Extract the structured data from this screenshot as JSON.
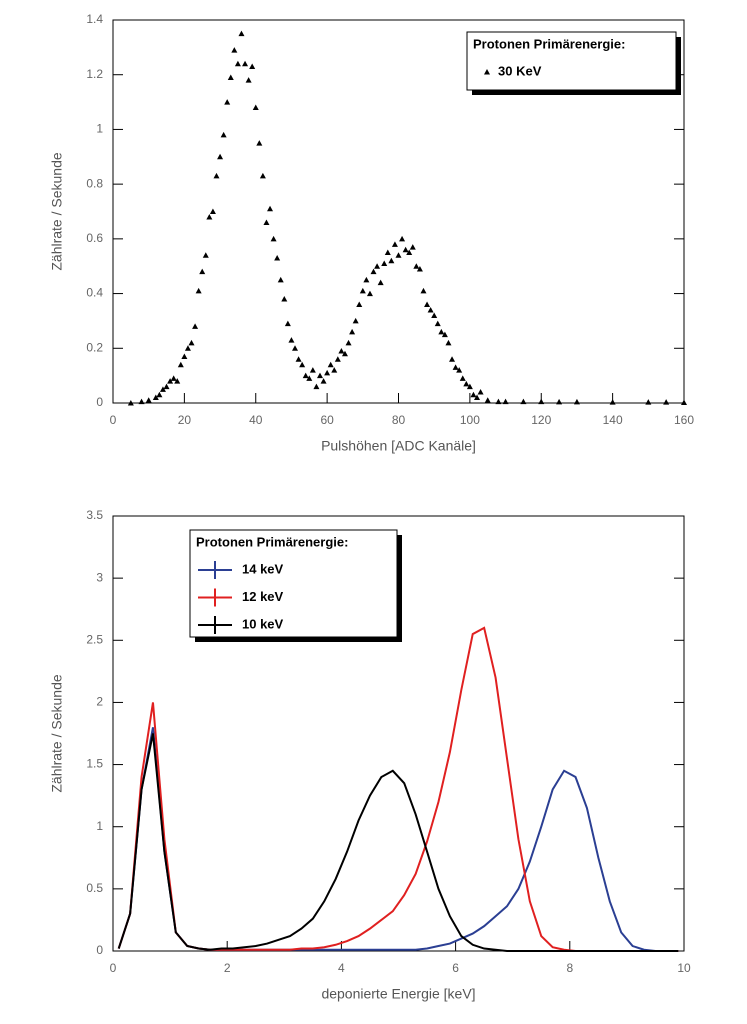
{
  "chart_data": [
    {
      "type": "scatter",
      "x_label": "Pulshöhen [ADC Kanäle]",
      "y_label": "Zählrate / Sekunde",
      "legend_title": "Protonen Primärenergie:",
      "xlim": [
        0,
        160
      ],
      "xticks": [
        0,
        20,
        40,
        60,
        80,
        100,
        120,
        140,
        160
      ],
      "ylim": [
        0,
        1.4
      ],
      "yticks": [
        0,
        0.2,
        0.4,
        0.6,
        0.8,
        1,
        1.2,
        1.4
      ],
      "series": [
        {
          "name": "30 KeV",
          "color": "#000000",
          "x": [
            5,
            8,
            10,
            12,
            13,
            14,
            15,
            16,
            17,
            18,
            19,
            20,
            21,
            22,
            23,
            24,
            25,
            26,
            27,
            28,
            29,
            30,
            31,
            32,
            33,
            34,
            35,
            36,
            37,
            38,
            39,
            40,
            41,
            42,
            43,
            44,
            45,
            46,
            47,
            48,
            49,
            50,
            51,
            52,
            53,
            54,
            55,
            56,
            57,
            58,
            59,
            60,
            61,
            62,
            63,
            64,
            65,
            66,
            67,
            68,
            69,
            70,
            71,
            72,
            73,
            74,
            75,
            76,
            77,
            78,
            79,
            80,
            81,
            82,
            83,
            84,
            85,
            86,
            87,
            88,
            89,
            90,
            91,
            92,
            93,
            94,
            95,
            96,
            97,
            98,
            99,
            100,
            101,
            102,
            103,
            105,
            108,
            110,
            115,
            120,
            125,
            130,
            140,
            150,
            155,
            160
          ],
          "values": [
            0,
            0.005,
            0.01,
            0.02,
            0.03,
            0.05,
            0.06,
            0.08,
            0.09,
            0.08,
            0.14,
            0.17,
            0.2,
            0.22,
            0.28,
            0.41,
            0.48,
            0.54,
            0.68,
            0.7,
            0.83,
            0.9,
            0.98,
            1.1,
            1.19,
            1.29,
            1.24,
            1.35,
            1.24,
            1.18,
            1.23,
            1.08,
            0.95,
            0.83,
            0.66,
            0.71,
            0.6,
            0.53,
            0.45,
            0.38,
            0.29,
            0.23,
            0.2,
            0.16,
            0.14,
            0.1,
            0.09,
            0.12,
            0.06,
            0.1,
            0.08,
            0.11,
            0.14,
            0.12,
            0.16,
            0.19,
            0.18,
            0.22,
            0.26,
            0.3,
            0.36,
            0.41,
            0.45,
            0.4,
            0.48,
            0.5,
            0.44,
            0.51,
            0.55,
            0.52,
            0.58,
            0.54,
            0.6,
            0.56,
            0.55,
            0.57,
            0.5,
            0.49,
            0.41,
            0.36,
            0.34,
            0.32,
            0.29,
            0.26,
            0.25,
            0.22,
            0.16,
            0.13,
            0.12,
            0.09,
            0.07,
            0.06,
            0.03,
            0.02,
            0.04,
            0.01,
            0.005,
            0.005,
            0.005,
            0.005,
            0.004,
            0.004,
            0.003,
            0.003,
            0.003,
            0.002
          ]
        }
      ]
    },
    {
      "type": "line",
      "x_label": "deponierte Energie [keV]",
      "y_label": "Zählrate / Sekunde",
      "legend_title": "Protonen Primärenergie:",
      "xlim": [
        0,
        10
      ],
      "xticks": [
        0,
        2,
        4,
        6,
        8,
        10
      ],
      "ylim": [
        0,
        3.5
      ],
      "yticks": [
        0,
        0.5,
        1,
        1.5,
        2,
        2.5,
        3,
        3.5
      ],
      "x": [
        0.1,
        0.3,
        0.5,
        0.7,
        0.9,
        1.1,
        1.3,
        1.5,
        1.7,
        1.9,
        2.1,
        2.3,
        2.5,
        2.7,
        2.9,
        3.1,
        3.3,
        3.5,
        3.7,
        3.9,
        4.1,
        4.3,
        4.5,
        4.7,
        4.9,
        5.1,
        5.3,
        5.5,
        5.7,
        5.9,
        6.1,
        6.3,
        6.5,
        6.7,
        6.9,
        7.1,
        7.3,
        7.5,
        7.7,
        7.9,
        8.1,
        8.3,
        8.5,
        8.7,
        8.9,
        9.1,
        9.3,
        9.5,
        9.7,
        9.9
      ],
      "series": [
        {
          "name": "14 keV",
          "color": "#2b3f93",
          "values": [
            0.02,
            0.3,
            1.3,
            1.8,
            0.8,
            0.15,
            0.04,
            0.02,
            0.01,
            0.01,
            0.01,
            0.01,
            0.01,
            0.01,
            0.01,
            0.01,
            0.01,
            0.01,
            0.01,
            0.01,
            0.01,
            0.01,
            0.01,
            0.01,
            0.01,
            0.01,
            0.01,
            0.02,
            0.04,
            0.06,
            0.1,
            0.14,
            0.2,
            0.28,
            0.36,
            0.5,
            0.72,
            1.0,
            1.3,
            1.45,
            1.4,
            1.15,
            0.75,
            0.4,
            0.15,
            0.04,
            0.01,
            0,
            0,
            0
          ]
        },
        {
          "name": "12 keV",
          "color": "#e02020",
          "values": [
            0.02,
            0.3,
            1.4,
            2.0,
            0.9,
            0.15,
            0.04,
            0.02,
            0.01,
            0.01,
            0.01,
            0.01,
            0.01,
            0.01,
            0.01,
            0.01,
            0.02,
            0.02,
            0.03,
            0.05,
            0.08,
            0.12,
            0.18,
            0.25,
            0.32,
            0.45,
            0.62,
            0.88,
            1.2,
            1.6,
            2.1,
            2.55,
            2.6,
            2.2,
            1.55,
            0.9,
            0.4,
            0.12,
            0.03,
            0.01,
            0,
            0,
            0,
            0,
            0,
            0,
            0,
            0,
            0,
            0
          ]
        },
        {
          "name": "10 keV",
          "color": "#000000",
          "values": [
            0.02,
            0.3,
            1.3,
            1.75,
            0.8,
            0.15,
            0.04,
            0.02,
            0.01,
            0.02,
            0.02,
            0.03,
            0.04,
            0.06,
            0.09,
            0.12,
            0.18,
            0.26,
            0.4,
            0.58,
            0.8,
            1.05,
            1.25,
            1.4,
            1.45,
            1.35,
            1.1,
            0.8,
            0.5,
            0.28,
            0.12,
            0.05,
            0.02,
            0.01,
            0,
            0,
            0,
            0,
            0,
            0,
            0,
            0,
            0,
            0,
            0,
            0,
            0,
            0,
            0,
            0
          ]
        }
      ]
    }
  ]
}
